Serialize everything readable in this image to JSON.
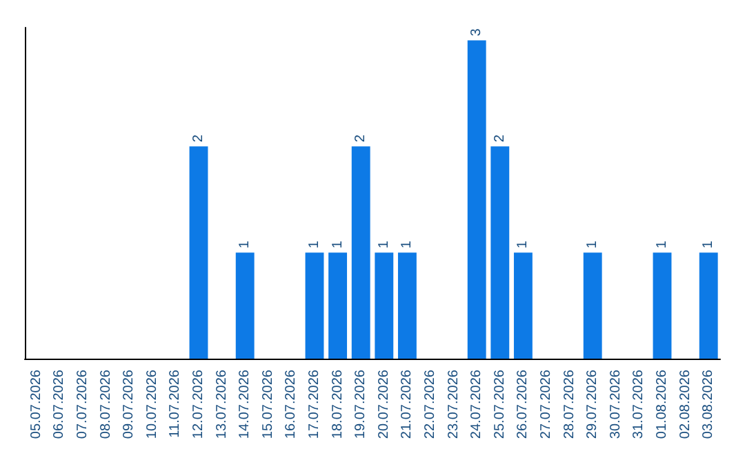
{
  "chart_data": {
    "type": "bar",
    "categories": [
      "05.07.2026",
      "06.07.2026",
      "07.07.2026",
      "08.07.2026",
      "09.07.2026",
      "10.07.2026",
      "11.07.2026",
      "12.07.2026",
      "13.07.2026",
      "14.07.2026",
      "15.07.2026",
      "16.07.2026",
      "17.07.2026",
      "18.07.2026",
      "19.07.2026",
      "20.07.2026",
      "21.07.2026",
      "22.07.2026",
      "23.07.2026",
      "24.07.2026",
      "25.07.2026",
      "26.07.2026",
      "27.07.2026",
      "28.07.2026",
      "29.07.2026",
      "30.07.2026",
      "31.07.2026",
      "01.08.2026",
      "02.08.2026",
      "03.08.2026"
    ],
    "values": [
      0,
      0,
      0,
      0,
      0,
      0,
      0,
      2,
      0,
      1,
      0,
      0,
      1,
      1,
      2,
      1,
      1,
      0,
      0,
      3,
      2,
      1,
      0,
      0,
      1,
      0,
      0,
      1,
      0,
      1
    ],
    "value_labels": [
      null,
      null,
      null,
      null,
      null,
      null,
      null,
      "2",
      null,
      "1",
      null,
      null,
      "1",
      "1",
      "2",
      "1",
      "1",
      null,
      null,
      "3",
      "2",
      "1",
      null,
      null,
      "1",
      null,
      null,
      "1",
      null,
      "1"
    ],
    "color": "#0d7ae6"
  }
}
